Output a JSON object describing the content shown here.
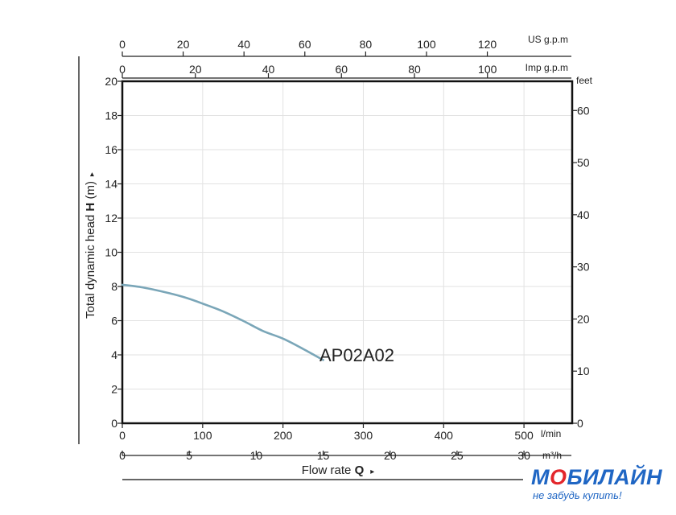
{
  "chart_data": {
    "type": "line",
    "series": [
      {
        "name": "AP02A02",
        "x_lpm": [
          0,
          25,
          50,
          75,
          100,
          125,
          150,
          175,
          200,
          225,
          250
        ],
        "values": [
          8.1,
          7.95,
          7.7,
          7.4,
          7.0,
          6.55,
          6.0,
          5.4,
          4.95,
          4.35,
          3.7
        ]
      }
    ],
    "axes": {
      "y_left": {
        "label_prefix": "Total dynamic head ",
        "label_symbol": "H",
        "label_unit": " (m)",
        "ticks": [
          "0",
          "2",
          "4",
          "6",
          "8",
          "10",
          "12",
          "14",
          "16",
          "18",
          "20"
        ],
        "ylim": [
          0,
          20
        ]
      },
      "y_right": {
        "unit": "feet",
        "ticks": [
          "0",
          "10",
          "20",
          "30",
          "40",
          "50",
          "60"
        ],
        "ylim_feet": [
          0,
          65.6
        ]
      },
      "x_lpm": {
        "unit": "l/min",
        "ticks": [
          "0",
          "100",
          "200",
          "300",
          "400",
          "500"
        ],
        "xlim": [
          0,
          560
        ]
      },
      "x_m3h": {
        "unit": "m³/h",
        "ticks": [
          "0",
          "5",
          "10",
          "15",
          "20",
          "25",
          "30"
        ],
        "xlim": [
          0,
          33.6
        ]
      },
      "x_usgpm": {
        "unit": "US g.p.m",
        "ticks": [
          "0",
          "20",
          "40",
          "60",
          "80",
          "100",
          "120"
        ],
        "xlim": [
          0,
          147.9
        ]
      },
      "x_impgpm": {
        "unit": "Imp g.p.m",
        "ticks": [
          "0",
          "20",
          "40",
          "60",
          "80",
          "100"
        ],
        "xlim": [
          0,
          123.2
        ]
      },
      "x_title_prefix": "Flow rate ",
      "x_title_symbol": "Q"
    },
    "grid": true,
    "arrow_glyph": "▸"
  },
  "colors": {
    "curve": "#7aa6b8",
    "grid": "#e2e2e2",
    "frame": "#111111",
    "brand": "#1f66c4",
    "brand_accent": "#e3262b"
  },
  "logo": {
    "name_part1": "М",
    "name_accent": "О",
    "name_part2": "БИЛАЙН",
    "slogan": "не забудь купить!"
  }
}
